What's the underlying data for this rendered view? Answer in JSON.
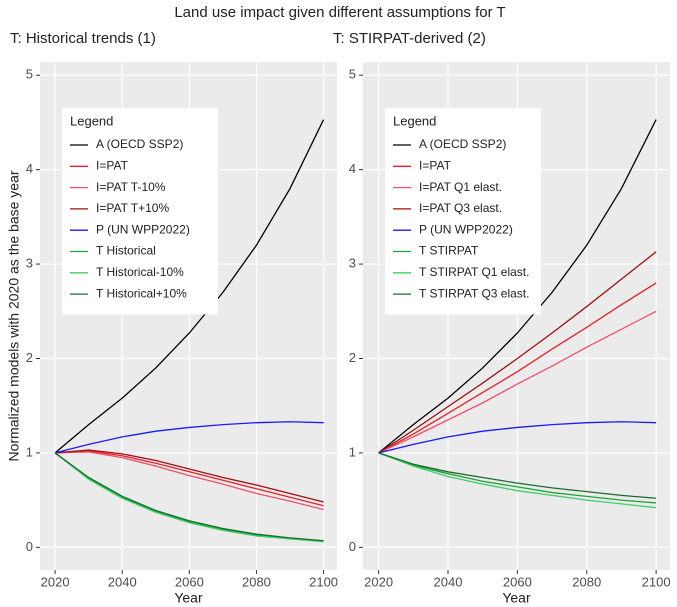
{
  "title": "Land use impact given different assumptions for T",
  "ylabel": "Normalized models with 2020 as the base year",
  "chart_data": [
    {
      "type": "line",
      "subtitle": "T: Historical trends (1)",
      "xlabel": "Year",
      "x": [
        2020,
        2030,
        2040,
        2050,
        2060,
        2070,
        2080,
        2090,
        2100
      ],
      "xlim": [
        2015.5,
        2104
      ],
      "xticks": [
        2020,
        2040,
        2060,
        2080,
        2100
      ],
      "ylim": [
        -0.24,
        5.14
      ],
      "yticks": [
        0,
        1,
        2,
        3,
        4,
        5
      ],
      "grid": true,
      "legend_title": "Legend",
      "legend_position": "top-left",
      "series": [
        {
          "name": "A (OECD SSP2)",
          "color": "#000000",
          "values": [
            1,
            1.3,
            1.58,
            1.9,
            2.27,
            2.7,
            3.2,
            3.8,
            4.53
          ]
        },
        {
          "name": "I=PAT",
          "color": "#e8202a",
          "values": [
            1,
            1.02,
            0.97,
            0.89,
            0.8,
            0.71,
            0.62,
            0.53,
            0.44
          ]
        },
        {
          "name": "I=PAT T-10%",
          "color": "#f0506e",
          "values": [
            1,
            1.01,
            0.95,
            0.86,
            0.76,
            0.67,
            0.57,
            0.49,
            0.4
          ]
        },
        {
          "name": "I=PAT T+10%",
          "color": "#a01010",
          "values": [
            1,
            1.03,
            0.99,
            0.92,
            0.83,
            0.74,
            0.66,
            0.57,
            0.48
          ]
        },
        {
          "name": "P (UN WPP2022)",
          "color": "#1a1aff",
          "values": [
            1,
            1.09,
            1.17,
            1.23,
            1.27,
            1.3,
            1.32,
            1.33,
            1.32
          ]
        },
        {
          "name": "T Historical",
          "color": "#22a33a",
          "values": [
            1,
            0.73,
            0.53,
            0.38,
            0.27,
            0.19,
            0.13,
            0.09,
            0.07
          ]
        },
        {
          "name": "T Historical-10%",
          "color": "#3ccf6a",
          "values": [
            1,
            0.72,
            0.52,
            0.37,
            0.26,
            0.18,
            0.12,
            0.09,
            0.06
          ]
        },
        {
          "name": "T Historical+10%",
          "color": "#1a6b30",
          "values": [
            1,
            0.74,
            0.54,
            0.39,
            0.28,
            0.2,
            0.14,
            0.1,
            0.07
          ]
        }
      ]
    },
    {
      "type": "line",
      "subtitle": "T: STIRPAT-derived (2)",
      "xlabel": "Year",
      "x": [
        2020,
        2030,
        2040,
        2050,
        2060,
        2070,
        2080,
        2090,
        2100
      ],
      "xlim": [
        2015.5,
        2104
      ],
      "xticks": [
        2020,
        2040,
        2060,
        2080,
        2100
      ],
      "ylim": [
        -0.24,
        5.14
      ],
      "yticks": [
        0,
        1,
        2,
        3,
        4,
        5
      ],
      "grid": true,
      "legend_title": "Legend",
      "legend_position": "top-left",
      "series": [
        {
          "name": "A (OECD SSP2)",
          "color": "#000000",
          "values": [
            1,
            1.3,
            1.58,
            1.9,
            2.27,
            2.7,
            3.2,
            3.8,
            4.53
          ]
        },
        {
          "name": "I=PAT",
          "color": "#e8202a",
          "values": [
            1,
            1.2,
            1.42,
            1.64,
            1.86,
            2.1,
            2.33,
            2.57,
            2.8
          ]
        },
        {
          "name": "I=PAT Q1 elast.",
          "color": "#f0506e",
          "values": [
            1,
            1.17,
            1.35,
            1.53,
            1.73,
            1.92,
            2.12,
            2.31,
            2.5
          ]
        },
        {
          "name": "I=PAT Q3 elast.",
          "color": "#a01010",
          "values": [
            1,
            1.24,
            1.49,
            1.74,
            2.0,
            2.27,
            2.55,
            2.84,
            3.13
          ]
        },
        {
          "name": "P (UN WPP2022)",
          "color": "#1a1aff",
          "values": [
            1,
            1.09,
            1.17,
            1.23,
            1.27,
            1.3,
            1.32,
            1.33,
            1.32
          ]
        },
        {
          "name": "T STIRPAT",
          "color": "#22a33a",
          "values": [
            1,
            0.87,
            0.78,
            0.7,
            0.64,
            0.58,
            0.54,
            0.5,
            0.47
          ]
        },
        {
          "name": "T STIRPAT Q1 elast.",
          "color": "#3ccf6a",
          "values": [
            1,
            0.86,
            0.75,
            0.67,
            0.6,
            0.55,
            0.5,
            0.46,
            0.42
          ]
        },
        {
          "name": "T STIRPAT Q3 elast.",
          "color": "#1a6b30",
          "values": [
            1,
            0.88,
            0.8,
            0.74,
            0.68,
            0.63,
            0.59,
            0.55,
            0.52
          ]
        }
      ]
    }
  ]
}
